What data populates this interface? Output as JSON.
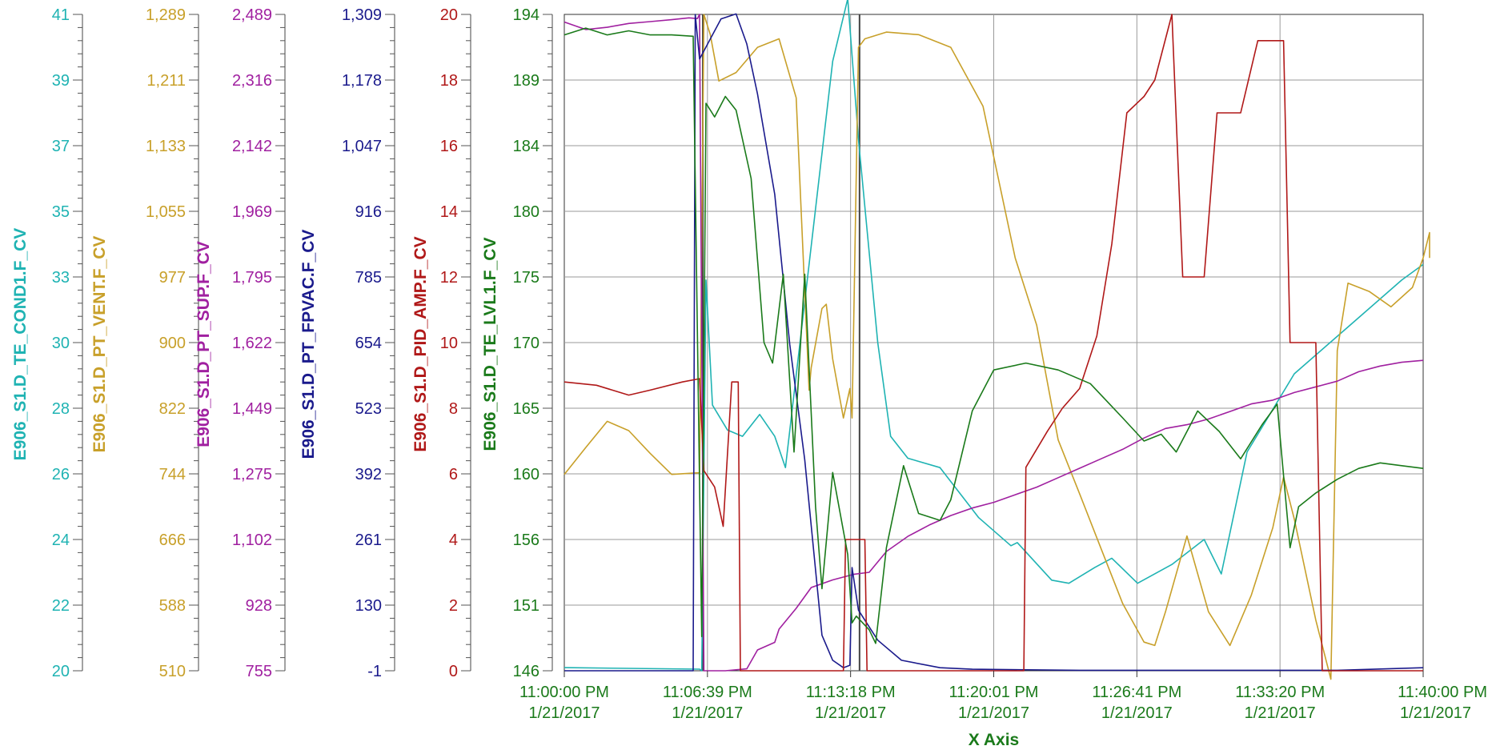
{
  "chart_data": {
    "type": "line",
    "xlabel": "X Axis",
    "x_ticks": [
      {
        "time": "11:00:00 PM",
        "date": "1/21/2017"
      },
      {
        "time": "11:06:39 PM",
        "date": "1/21/2017"
      },
      {
        "time": "11:13:18 PM",
        "date": "1/21/2017"
      },
      {
        "time": "11:20:01 PM",
        "date": "1/21/2017"
      },
      {
        "time": "11:26:41 PM",
        "date": "1/21/2017"
      },
      {
        "time": "11:33:20 PM",
        "date": "1/21/2017"
      },
      {
        "time": "11:40:00 PM",
        "date": "1/21/2017"
      }
    ],
    "x_range_minutes": [
      0,
      40
    ],
    "grid": true,
    "axes": [
      {
        "name": "E906_S1.D_TE_COND1.F_CV",
        "color": "#1fb3b3",
        "ticks": [
          "41",
          "39",
          "37",
          "35",
          "33",
          "30",
          "28",
          "26",
          "24",
          "22",
          "20"
        ],
        "range": [
          20,
          41
        ]
      },
      {
        "name": "E906_S1.D_PT_VENT.F_CV",
        "color": "#c8a02a",
        "ticks": [
          "1,289",
          "1,211",
          "1,133",
          "1,055",
          "977",
          "900",
          "822",
          "744",
          "666",
          "588",
          "510"
        ],
        "range": [
          510,
          1289
        ]
      },
      {
        "name": "E906_S1.D_PT_SUP.F_CV",
        "color": "#a020a0",
        "ticks": [
          "2,489",
          "2,316",
          "2,142",
          "1,969",
          "1,795",
          "1,622",
          "1,449",
          "1,275",
          "1,102",
          "928",
          "755"
        ],
        "range": [
          755,
          2489
        ]
      },
      {
        "name": "E906_S1.D_PT_FPVAC.F_CV",
        "color": "#1a1a8c",
        "ticks": [
          "1,309",
          "1,178",
          "1,047",
          "916",
          "785",
          "654",
          "523",
          "392",
          "261",
          "130",
          "-1"
        ],
        "range": [
          -1,
          1309
        ]
      },
      {
        "name": "E906_S1.D_PID_AMP.F_CV",
        "color": "#b01818",
        "ticks": [
          "20",
          "18",
          "16",
          "14",
          "12",
          "10",
          "8",
          "6",
          "4",
          "2",
          "0"
        ],
        "range": [
          0,
          20
        ]
      },
      {
        "name": "E906_S1.D_TE_LVL1.F_CV",
        "color": "#1a7a1a",
        "ticks": [
          "194",
          "189",
          "184",
          "180",
          "175",
          "170",
          "165",
          "160",
          "156",
          "151",
          "146"
        ],
        "range": [
          146,
          194
        ]
      }
    ],
    "series": [
      {
        "name": "E906_S1.D_TE_COND1.F_CV",
        "axis": 0,
        "color": "#1fb3b3",
        "points": [
          [
            0,
            20.1
          ],
          [
            6.3,
            20.05
          ],
          [
            6.4,
            20.0
          ],
          [
            6.6,
            32.5
          ],
          [
            6.9,
            28.5
          ],
          [
            7.6,
            27.7
          ],
          [
            8.3,
            27.5
          ],
          [
            9.1,
            28.2
          ],
          [
            9.8,
            27.5
          ],
          [
            10.3,
            26.5
          ],
          [
            12.5,
            39.5
          ],
          [
            13.2,
            41.5
          ],
          [
            13.7,
            37.0
          ],
          [
            14.6,
            30.5
          ],
          [
            15.2,
            27.5
          ],
          [
            16.0,
            26.8
          ],
          [
            17.5,
            26.5
          ],
          [
            19.3,
            24.9
          ],
          [
            20.8,
            24.0
          ],
          [
            21.1,
            24.1
          ],
          [
            22.7,
            22.9
          ],
          [
            23.5,
            22.8
          ],
          [
            24.7,
            23.3
          ],
          [
            25.5,
            23.6
          ],
          [
            26.7,
            22.8
          ],
          [
            28.3,
            23.4
          ],
          [
            29.8,
            24.2
          ],
          [
            30.6,
            23.1
          ],
          [
            31.8,
            27.0
          ],
          [
            34.0,
            29.5
          ],
          [
            36.5,
            31.0
          ],
          [
            39.0,
            32.5
          ],
          [
            40.0,
            33.0
          ]
        ]
      },
      {
        "name": "E906_S1.D_PT_VENT.F_CV",
        "axis": 1,
        "color": "#c8a02a",
        "points": [
          [
            0,
            743
          ],
          [
            1.0,
            775
          ],
          [
            2.0,
            806
          ],
          [
            3.0,
            795
          ],
          [
            4.0,
            768
          ],
          [
            5.0,
            743
          ],
          [
            6.3,
            745
          ],
          [
            6.5,
            1289
          ],
          [
            6.8,
            1265
          ],
          [
            7.2,
            1210
          ],
          [
            8.0,
            1220
          ],
          [
            9.0,
            1250
          ],
          [
            10.0,
            1260
          ],
          [
            10.8,
            1190
          ],
          [
            11.4,
            843
          ],
          [
            11.5,
            870
          ],
          [
            12.0,
            940
          ],
          [
            12.2,
            945
          ],
          [
            12.5,
            880
          ],
          [
            13.0,
            810
          ],
          [
            13.3,
            845
          ],
          [
            13.4,
            810
          ],
          [
            13.7,
            1250
          ],
          [
            14.0,
            1260
          ],
          [
            15.0,
            1268
          ],
          [
            16.5,
            1265
          ],
          [
            18.0,
            1250
          ],
          [
            19.5,
            1180
          ],
          [
            21.0,
            1000
          ],
          [
            22.0,
            920
          ],
          [
            23.0,
            784
          ],
          [
            24.0,
            720
          ],
          [
            25.0,
            655
          ],
          [
            26.0,
            590
          ],
          [
            27.0,
            544
          ],
          [
            27.5,
            540
          ],
          [
            28.0,
            580
          ],
          [
            29.0,
            670
          ],
          [
            30.0,
            580
          ],
          [
            31.0,
            540
          ],
          [
            32.0,
            600
          ],
          [
            33.0,
            680
          ],
          [
            33.5,
            740
          ],
          [
            34.0,
            690
          ],
          [
            35.0,
            570
          ],
          [
            35.7,
            500
          ],
          [
            36.0,
            890
          ],
          [
            36.5,
            970
          ],
          [
            37.5,
            960
          ],
          [
            38.5,
            942
          ],
          [
            39.5,
            965
          ],
          [
            40.0,
            1000
          ],
          [
            40.3,
            1030
          ],
          [
            40.3,
            1000
          ]
        ]
      },
      {
        "name": "E906_S1.D_PT_SUP.F_CV",
        "axis": 2,
        "color": "#a020a0",
        "points": [
          [
            0,
            2469
          ],
          [
            1.0,
            2449
          ],
          [
            2.0,
            2455
          ],
          [
            3.0,
            2465
          ],
          [
            4.0,
            2470
          ],
          [
            5.0,
            2475
          ],
          [
            5.8,
            2480
          ],
          [
            6.2,
            2478
          ],
          [
            6.3,
            2489
          ],
          [
            6.5,
            755
          ],
          [
            7.5,
            755
          ],
          [
            8.5,
            760
          ],
          [
            9.0,
            810
          ],
          [
            9.8,
            830
          ],
          [
            10.0,
            865
          ],
          [
            10.8,
            920
          ],
          [
            11.5,
            975
          ],
          [
            12.5,
            995
          ],
          [
            13.5,
            1010
          ],
          [
            14.2,
            1015
          ],
          [
            15.0,
            1070
          ],
          [
            16.0,
            1110
          ],
          [
            17.0,
            1140
          ],
          [
            18.0,
            1165
          ],
          [
            19.0,
            1185
          ],
          [
            20.0,
            1200
          ],
          [
            21.0,
            1220
          ],
          [
            22.0,
            1240
          ],
          [
            23.0,
            1265
          ],
          [
            24.0,
            1290
          ],
          [
            25.0,
            1315
          ],
          [
            26.0,
            1340
          ],
          [
            27.0,
            1370
          ],
          [
            28.0,
            1395
          ],
          [
            29.0,
            1405
          ],
          [
            30.0,
            1420
          ],
          [
            31.0,
            1440
          ],
          [
            32.0,
            1460
          ],
          [
            33.0,
            1470
          ],
          [
            34.0,
            1490
          ],
          [
            35.0,
            1505
          ],
          [
            36.0,
            1520
          ],
          [
            37.0,
            1545
          ],
          [
            38.0,
            1560
          ],
          [
            39.0,
            1570
          ],
          [
            40.0,
            1575
          ]
        ]
      },
      {
        "name": "E906_S1.D_PT_FPVAC.F_CV",
        "axis": 3,
        "color": "#1a1a8c",
        "points": [
          [
            0,
            -1
          ],
          [
            6.0,
            -1
          ],
          [
            6.1,
            1309
          ],
          [
            6.3,
            1220
          ],
          [
            7.3,
            1300
          ],
          [
            8.0,
            1310
          ],
          [
            8.5,
            1250
          ],
          [
            9.0,
            1150
          ],
          [
            9.8,
            950
          ],
          [
            10.5,
            650
          ],
          [
            11.2,
            420
          ],
          [
            12.0,
            70
          ],
          [
            12.5,
            20
          ],
          [
            13.0,
            5
          ],
          [
            13.3,
            10
          ],
          [
            13.4,
            205
          ],
          [
            13.7,
            120
          ],
          [
            14.6,
            60
          ],
          [
            15.7,
            20
          ],
          [
            17.5,
            5
          ],
          [
            19.0,
            2
          ],
          [
            24.0,
            0
          ],
          [
            30.0,
            0
          ],
          [
            36.0,
            0
          ],
          [
            40.0,
            5
          ]
        ]
      },
      {
        "name": "E906_S1.D_PID_AMP.F_CV",
        "axis": 4,
        "color": "#b01818",
        "points": [
          [
            0,
            8.8
          ],
          [
            1.5,
            8.7
          ],
          [
            3.0,
            8.4
          ],
          [
            4.0,
            8.55
          ],
          [
            5.5,
            8.8
          ],
          [
            6.3,
            8.9
          ],
          [
            6.5,
            6.1
          ],
          [
            7.0,
            5.6
          ],
          [
            7.4,
            4.4
          ],
          [
            7.8,
            8.8
          ],
          [
            8.1,
            8.8
          ],
          [
            8.2,
            0
          ],
          [
            8.5,
            0
          ],
          [
            8.6,
            0
          ],
          [
            13.0,
            0
          ],
          [
            13.1,
            4.0
          ],
          [
            14.0,
            4.0
          ],
          [
            14.1,
            0
          ],
          [
            21.4,
            0
          ],
          [
            21.5,
            6.2
          ],
          [
            22.5,
            7.3
          ],
          [
            23.2,
            8.0
          ],
          [
            24.0,
            8.6
          ],
          [
            24.8,
            10.2
          ],
          [
            25.5,
            13.0
          ],
          [
            26.2,
            17.0
          ],
          [
            27.0,
            17.5
          ],
          [
            27.5,
            18.0
          ],
          [
            28.3,
            20.0
          ],
          [
            28.8,
            12.0
          ],
          [
            29.8,
            12.0
          ],
          [
            30.4,
            17.0
          ],
          [
            31.5,
            17.0
          ],
          [
            32.3,
            19.2
          ],
          [
            33.5,
            19.2
          ],
          [
            33.8,
            10.0
          ],
          [
            34.8,
            10.0
          ],
          [
            35.0,
            10.0
          ],
          [
            35.3,
            0
          ],
          [
            40.0,
            0
          ]
        ]
      },
      {
        "name": "E906_S1.D_TE_LVL1.F_CV",
        "axis": 5,
        "color": "#1a7a1a",
        "points": [
          [
            0,
            192.5
          ],
          [
            1.0,
            193.0
          ],
          [
            2.0,
            192.5
          ],
          [
            3.0,
            192.8
          ],
          [
            4.0,
            192.5
          ],
          [
            5.0,
            192.5
          ],
          [
            6.0,
            192.4
          ],
          [
            6.4,
            148.5
          ],
          [
            6.6,
            187.5
          ],
          [
            7.0,
            186.5
          ],
          [
            7.5,
            188.0
          ],
          [
            8.0,
            187.0
          ],
          [
            8.7,
            182.0
          ],
          [
            9.3,
            170.0
          ],
          [
            9.7,
            168.5
          ],
          [
            10.2,
            175.0
          ],
          [
            10.7,
            162.0
          ],
          [
            11.2,
            175.0
          ],
          [
            11.7,
            158.0
          ],
          [
            12.0,
            152.0
          ],
          [
            12.5,
            160.5
          ],
          [
            13.2,
            154.5
          ],
          [
            13.4,
            149.5
          ],
          [
            13.6,
            150.0
          ],
          [
            14.2,
            149.0
          ],
          [
            14.5,
            148.0
          ],
          [
            15.0,
            155.0
          ],
          [
            15.8,
            161.0
          ],
          [
            16.5,
            157.5
          ],
          [
            17.5,
            157.0
          ],
          [
            18.0,
            158.5
          ],
          [
            19.0,
            165.0
          ],
          [
            20.0,
            168.0
          ],
          [
            21.5,
            168.5
          ],
          [
            23.0,
            168.0
          ],
          [
            24.5,
            167.0
          ],
          [
            26.0,
            164.5
          ],
          [
            27.0,
            162.8
          ],
          [
            27.8,
            163.3
          ],
          [
            28.5,
            162.0
          ],
          [
            29.5,
            165.0
          ],
          [
            30.5,
            163.5
          ],
          [
            31.5,
            161.5
          ],
          [
            32.5,
            164.0
          ],
          [
            33.2,
            165.5
          ],
          [
            33.8,
            155.0
          ],
          [
            34.2,
            158.0
          ],
          [
            35.0,
            159.0
          ],
          [
            36.0,
            160.0
          ],
          [
            37.0,
            160.8
          ],
          [
            38.0,
            161.2
          ],
          [
            39.0,
            161.0
          ],
          [
            40.0,
            160.8
          ]
        ]
      }
    ]
  }
}
